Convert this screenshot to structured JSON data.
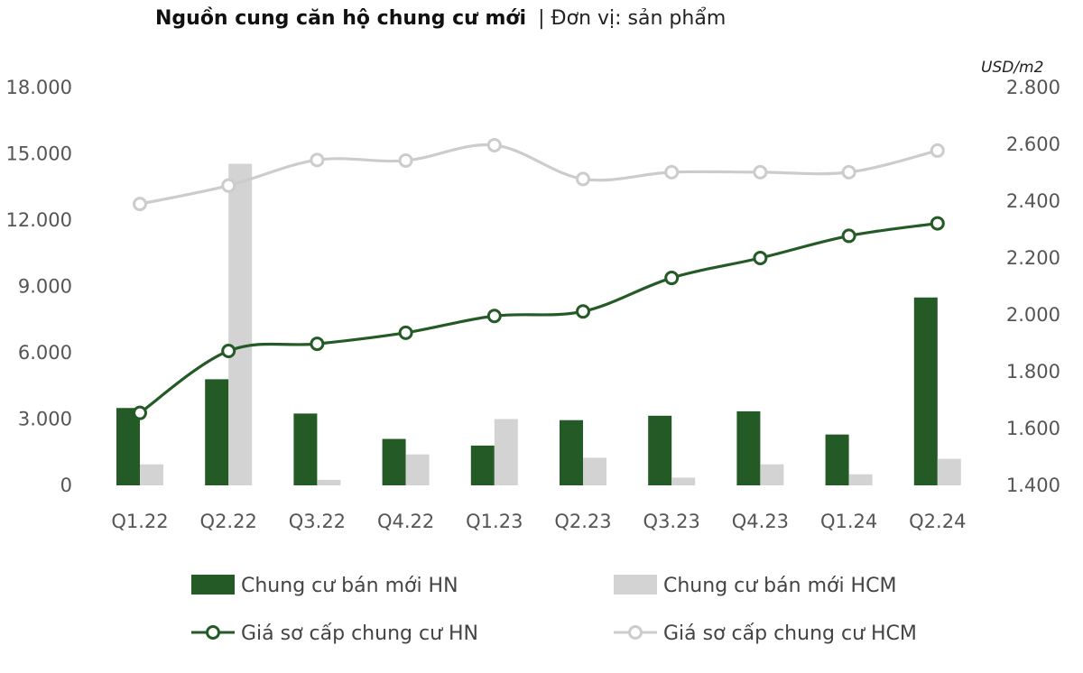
{
  "chart_data": {
    "type": "bar",
    "title": "Nguồn cung căn hộ chung cư mới",
    "subtitle": "| Đơn vị: sản phẩm",
    "categories": [
      "Q1.22",
      "Q2.22",
      "Q3.22",
      "Q4.22",
      "Q1.23",
      "Q2.23",
      "Q3.23",
      "Q4.23",
      "Q1.24",
      "Q2.24"
    ],
    "y_left": {
      "ylim": [
        0,
        18000
      ],
      "ticks": [
        "0",
        "3.000",
        "6.000",
        "9.000",
        "12.000",
        "15.000",
        "18.000"
      ]
    },
    "y_right": {
      "unit": "USD/m2",
      "ylim": [
        1400,
        2800
      ],
      "ticks": [
        "1.400",
        "1.600",
        "1.800",
        "2.000",
        "2.200",
        "2.400",
        "2.600",
        "2.800"
      ]
    },
    "series": [
      {
        "name": "Chung cư bán mới HN",
        "type": "bar",
        "axis": "left",
        "color": "#245a25",
        "values": [
          3500,
          4800,
          3250,
          2100,
          1800,
          2950,
          3150,
          3350,
          2300,
          8500
        ]
      },
      {
        "name": "Chung cư bán mới HCM",
        "type": "bar",
        "axis": "left",
        "color": "#d3d3d3",
        "values": [
          950,
          14550,
          250,
          1400,
          3000,
          1250,
          350,
          950,
          500,
          1200
        ]
      },
      {
        "name": "Giá sơ cấp chung cư HN",
        "type": "line",
        "axis": "right",
        "color": "#245a25",
        "values": [
          1655,
          1873,
          1898,
          1937,
          1996,
          2012,
          2130,
          2200,
          2278,
          2322
        ]
      },
      {
        "name": "Giá sơ cấp chung cư HCM",
        "type": "line",
        "axis": "right",
        "color": "#cccccc",
        "values": [
          2390,
          2455,
          2545,
          2543,
          2597,
          2478,
          2502,
          2502,
          2502,
          2578
        ]
      }
    ],
    "grid": false,
    "legend": "bottom"
  }
}
